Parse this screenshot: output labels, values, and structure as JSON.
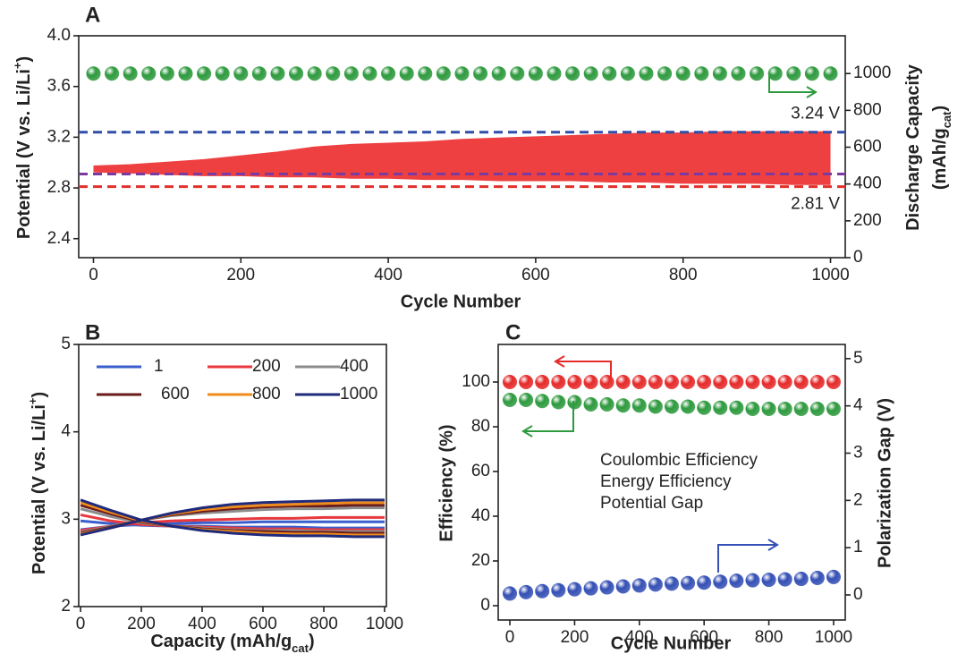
{
  "chart_data": [
    {
      "type": "scatter",
      "title": "A",
      "xlabel": "Cycle Number",
      "ylabel": [
        "Potential (V vs. Li/Li",
        {
          "sup": "+"
        },
        ")"
      ],
      "y2label": [
        [
          "Discharge Capacity"
        ],
        [
          "(mAh/g",
          {
            "sub": "cat"
          },
          ")"
        ]
      ],
      "xlim": [
        -20,
        1020
      ],
      "ylim": [
        2.25,
        4.0
      ],
      "y2lim": [
        0,
        1205
      ],
      "xticks": [
        0,
        200,
        400,
        600,
        800,
        1000
      ],
      "yticks": [
        2.4,
        2.8,
        3.2,
        3.6,
        {
          "value": 4,
          "label": "4.0"
        }
      ],
      "y2ticks": [
        0,
        200,
        400,
        600,
        800,
        1000
      ],
      "x": [
        0,
        25,
        50,
        75,
        100,
        125,
        150,
        175,
        200,
        225,
        250,
        275,
        300,
        325,
        350,
        375,
        400,
        425,
        450,
        475,
        500,
        525,
        550,
        575,
        600,
        625,
        650,
        675,
        700,
        725,
        750,
        775,
        800,
        825,
        850,
        875,
        900,
        925,
        950,
        975,
        1000
      ],
      "series": [
        {
          "color": "#2e9a3e",
          "axis": "y2",
          "values": [
            1000,
            1000,
            1000,
            1000,
            1000,
            1000,
            1000,
            1000,
            1000,
            1000,
            1000,
            1000,
            1000,
            1000,
            1000,
            1000,
            1000,
            1000,
            1000,
            1000,
            1000,
            1000,
            1000,
            1000,
            1000,
            1000,
            1000,
            1000,
            1000,
            1000,
            1000,
            1000,
            1000,
            1000,
            1000,
            1000,
            1000,
            1000,
            1000,
            1000,
            1000
          ]
        }
      ],
      "band": {
        "color": "#ee4040",
        "x": [
          0,
          50,
          100,
          150,
          200,
          250,
          300,
          350,
          400,
          450,
          500,
          550,
          600,
          650,
          700,
          750,
          800,
          850,
          900,
          950,
          1000
        ],
        "upper": [
          2.97,
          2.98,
          3.0,
          3.02,
          3.05,
          3.08,
          3.12,
          3.14,
          3.15,
          3.16,
          3.18,
          3.19,
          3.2,
          3.21,
          3.22,
          3.23,
          3.23,
          3.24,
          3.24,
          3.24,
          3.24
        ],
        "lower": [
          2.93,
          2.92,
          2.91,
          2.9,
          2.9,
          2.89,
          2.89,
          2.88,
          2.88,
          2.87,
          2.87,
          2.86,
          2.86,
          2.86,
          2.85,
          2.85,
          2.84,
          2.84,
          2.84,
          2.83,
          2.83
        ]
      },
      "reference_lines": [
        {
          "value": 3.24,
          "label": "3.24 V",
          "color": "#2f4fa8"
        },
        {
          "value": 2.81,
          "label": "2.81 V",
          "color": "#e0302c"
        },
        {
          "value": 2.91,
          "color": "#7a3aa0"
        }
      ]
    },
    {
      "type": "line",
      "title": "B",
      "xlabel": [
        "Capacity (mAh/g",
        {
          "sub": "cat"
        },
        ")"
      ],
      "ylabel": [
        "Potential (V vs. Li/Li",
        {
          "sup": "+"
        },
        ")"
      ],
      "xlim": [
        -6,
        1006
      ],
      "ylim": [
        2,
        5
      ],
      "xticks": [
        0,
        200,
        400,
        600,
        800,
        1000
      ],
      "yticks": [
        2,
        3,
        4,
        5
      ],
      "x": [
        0,
        100,
        200,
        300,
        400,
        500,
        600,
        700,
        800,
        900,
        1000
      ],
      "series": [
        {
          "name": "1",
          "color": "#3a5fcd",
          "charge": [
            2.88,
            2.92,
            2.94,
            2.95,
            2.96,
            2.96,
            2.97,
            2.97,
            2.97,
            2.97,
            2.97
          ],
          "discharge": [
            2.98,
            2.95,
            2.93,
            2.92,
            2.92,
            2.91,
            2.91,
            2.91,
            2.9,
            2.9,
            2.9
          ]
        },
        {
          "name": "200",
          "color": "#e8383d",
          "charge": [
            2.87,
            2.92,
            2.96,
            2.98,
            2.99,
            3.0,
            3.01,
            3.01,
            3.02,
            3.02,
            3.02
          ],
          "discharge": [
            3.05,
            2.98,
            2.94,
            2.92,
            2.91,
            2.9,
            2.89,
            2.89,
            2.88,
            2.88,
            2.88
          ]
        },
        {
          "name": "400",
          "color": "#8c8c8c",
          "charge": [
            2.85,
            2.92,
            2.99,
            3.04,
            3.07,
            3.09,
            3.11,
            3.12,
            3.12,
            3.13,
            3.13
          ],
          "discharge": [
            3.12,
            3.03,
            2.96,
            2.92,
            2.9,
            2.88,
            2.87,
            2.87,
            2.86,
            2.86,
            2.86
          ]
        },
        {
          "name": "600",
          "color": "#6b1a1a",
          "charge": [
            2.84,
            2.91,
            2.99,
            3.05,
            3.09,
            3.12,
            3.14,
            3.15,
            3.15,
            3.16,
            3.16
          ],
          "discharge": [
            3.16,
            3.06,
            2.97,
            2.92,
            2.89,
            2.87,
            2.86,
            2.85,
            2.85,
            2.84,
            2.84
          ]
        },
        {
          "name": "800",
          "color": "#f08c1c",
          "charge": [
            2.83,
            2.9,
            2.99,
            3.06,
            3.11,
            3.14,
            3.16,
            3.17,
            3.18,
            3.19,
            3.19
          ],
          "discharge": [
            3.19,
            3.08,
            2.98,
            2.92,
            2.88,
            2.86,
            2.84,
            2.83,
            2.83,
            2.82,
            2.82
          ]
        },
        {
          "name": "1000",
          "color": "#1f2a7a",
          "charge": [
            2.82,
            2.9,
            2.99,
            3.07,
            3.13,
            3.17,
            3.19,
            3.2,
            3.21,
            3.22,
            3.22
          ],
          "discharge": [
            3.22,
            3.1,
            2.99,
            2.92,
            2.87,
            2.84,
            2.82,
            2.81,
            2.81,
            2.8,
            2.8
          ]
        }
      ]
    },
    {
      "type": "scatter",
      "title": "C",
      "xlabel": "Cycle Number",
      "ylabel": "Efficiency (%)",
      "y2label": "Polarization Gap (V)",
      "xlim": [
        -36,
        1036
      ],
      "ylim": [
        -6.4,
        116.8
      ],
      "y2lim": [
        -0.53,
        5.3
      ],
      "xticks": [
        0,
        200,
        400,
        600,
        800,
        1000
      ],
      "yticks": [
        0,
        20,
        40,
        60,
        80,
        100
      ],
      "y2ticks": [
        0,
        1,
        2,
        3,
        4,
        5
      ],
      "x": [
        0,
        50,
        100,
        150,
        200,
        250,
        300,
        350,
        400,
        450,
        500,
        550,
        600,
        650,
        700,
        750,
        800,
        850,
        900,
        950,
        1000
      ],
      "series": [
        {
          "name": "Coulombic Efficiency",
          "color": "#e52a2a",
          "values": [
            100,
            100,
            100,
            100,
            100,
            100,
            100,
            100,
            100,
            100,
            100,
            100,
            100,
            100,
            100,
            100,
            100,
            100,
            100,
            100,
            100
          ]
        },
        {
          "name": "Energy Efficiency",
          "color": "#2e9a3e",
          "values": [
            92,
            92,
            91.5,
            91,
            91,
            90,
            90,
            89.5,
            89.5,
            89,
            89,
            89,
            88.5,
            88.5,
            88.5,
            88,
            88,
            88,
            88,
            88,
            88
          ]
        },
        {
          "name": "Potential Gap",
          "color": "#3550b5",
          "axis": "y2",
          "values": [
            0.03,
            0.06,
            0.08,
            0.1,
            0.12,
            0.14,
            0.16,
            0.18,
            0.2,
            0.22,
            0.24,
            0.25,
            0.26,
            0.28,
            0.3,
            0.31,
            0.32,
            0.33,
            0.34,
            0.36,
            0.38
          ]
        }
      ]
    }
  ]
}
